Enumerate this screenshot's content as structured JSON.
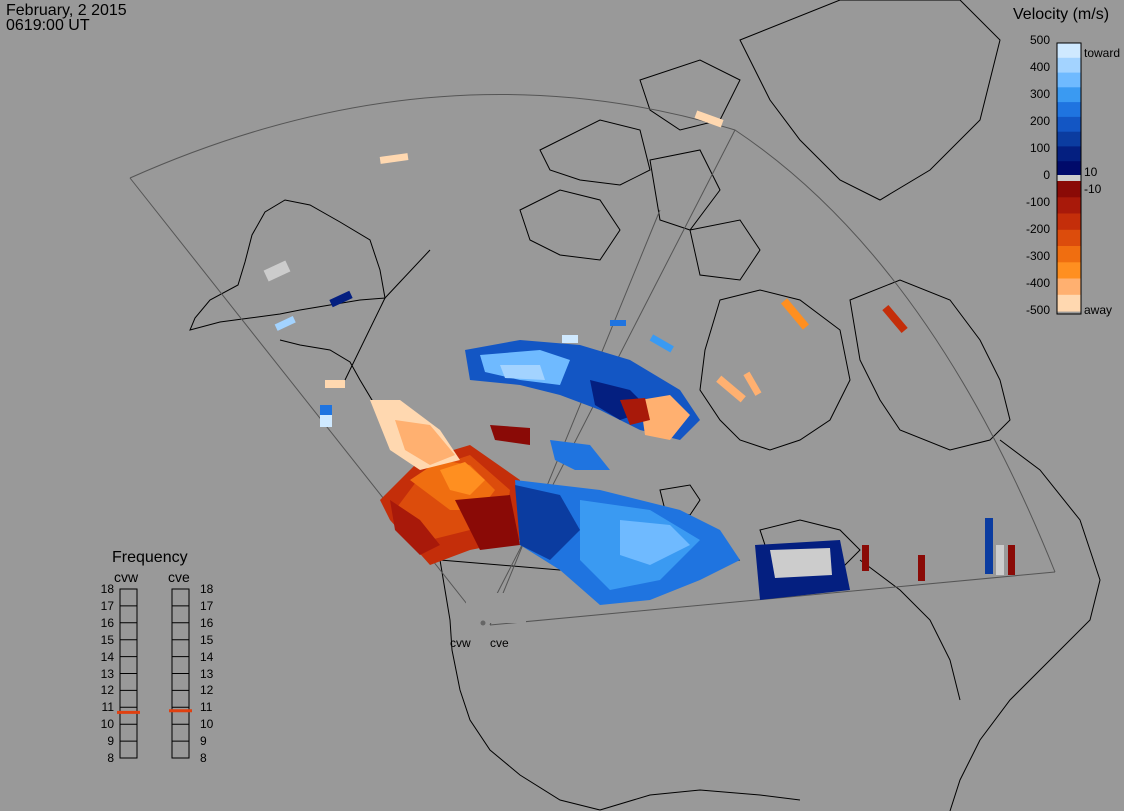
{
  "header": {
    "date": "February, 2 2015",
    "time": "0619:00 UT"
  },
  "colorbar": {
    "title": "Velocity (m/s)",
    "ticks": [
      "500",
      "400",
      "300",
      "200",
      "100",
      "0",
      "-100",
      "-200",
      "-300",
      "-400",
      "-500"
    ],
    "inner_ticks": [
      "10",
      "-10"
    ],
    "toward_label": "toward",
    "away_label": "away",
    "colors": [
      "#cfe9ff",
      "#a3d3ff",
      "#6fbaff",
      "#3a9af2",
      "#1f74e0",
      "#1356c4",
      "#0b3ca0",
      "#041f80",
      "#000a6a",
      "#cccccc",
      "#8a0a06",
      "#a8190a",
      "#c42e0a",
      "#dc4c0c",
      "#f06e10",
      "#ff8f20",
      "#ffb070",
      "#ffd8b0"
    ]
  },
  "frequency_panel": {
    "title": "Frequency",
    "radars": [
      "cvw",
      "cve"
    ],
    "scale": [
      "18",
      "17",
      "16",
      "15",
      "14",
      "13",
      "12",
      "11",
      "10",
      "9",
      "8"
    ],
    "cvw_freq_mhz": 10.7,
    "cve_freq_mhz": 10.8,
    "marker_color": "#e04010"
  },
  "sites": {
    "west": "cvw",
    "east": "cve"
  }
}
